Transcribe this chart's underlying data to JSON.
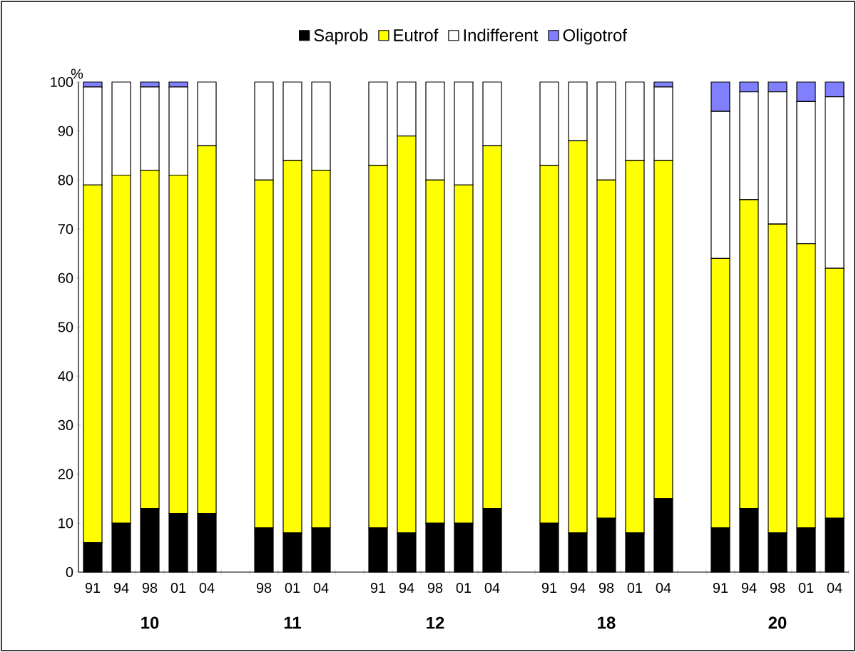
{
  "chart_data": {
    "type": "bar",
    "stacked": true,
    "ylabel": "%",
    "categories": [
      "91",
      "94",
      "98",
      "01",
      "04",
      null,
      "98",
      "01",
      "04",
      null,
      "91",
      "94",
      "98",
      "01",
      "04",
      null,
      "91",
      "94",
      "98",
      "01",
      "04",
      null,
      "91",
      "94",
      "98",
      "01",
      "04"
    ],
    "series": [
      {
        "name": "Saprob",
        "color": "#000000",
        "values": [
          6,
          10,
          13,
          12,
          12,
          null,
          9,
          8,
          9,
          null,
          9,
          8,
          10,
          10,
          13,
          null,
          10,
          8,
          11,
          8,
          15,
          null,
          9,
          13,
          8,
          9,
          11
        ]
      },
      {
        "name": "Eutrof",
        "color": "#ffff00",
        "values": [
          73,
          71,
          69,
          69,
          75,
          null,
          71,
          76,
          73,
          null,
          74,
          81,
          70,
          69,
          74,
          null,
          73,
          80,
          69,
          76,
          69,
          null,
          55,
          63,
          63,
          58,
          51
        ]
      },
      {
        "name": "Indifferent",
        "color": "#ffffff",
        "values": [
          20,
          19,
          17,
          18,
          13,
          null,
          20,
          16,
          18,
          null,
          17,
          11,
          20,
          21,
          13,
          null,
          17,
          12,
          20,
          16,
          15,
          null,
          30,
          22,
          27,
          29,
          35
        ]
      },
      {
        "name": "Oligotrof",
        "color": "#8080ff",
        "values": [
          1,
          0,
          1,
          1,
          0,
          null,
          0,
          0,
          0,
          null,
          0,
          0,
          0,
          0,
          0,
          null,
          0,
          0,
          0,
          0,
          1,
          null,
          6,
          2,
          2,
          4,
          3
        ]
      }
    ],
    "ylim": [
      0,
      100
    ],
    "yticks": [
      0,
      10,
      20,
      30,
      40,
      50,
      60,
      70,
      80,
      90,
      100
    ],
    "legend": "top",
    "annotations": [
      "10",
      "11",
      "12",
      "18",
      "20"
    ]
  }
}
